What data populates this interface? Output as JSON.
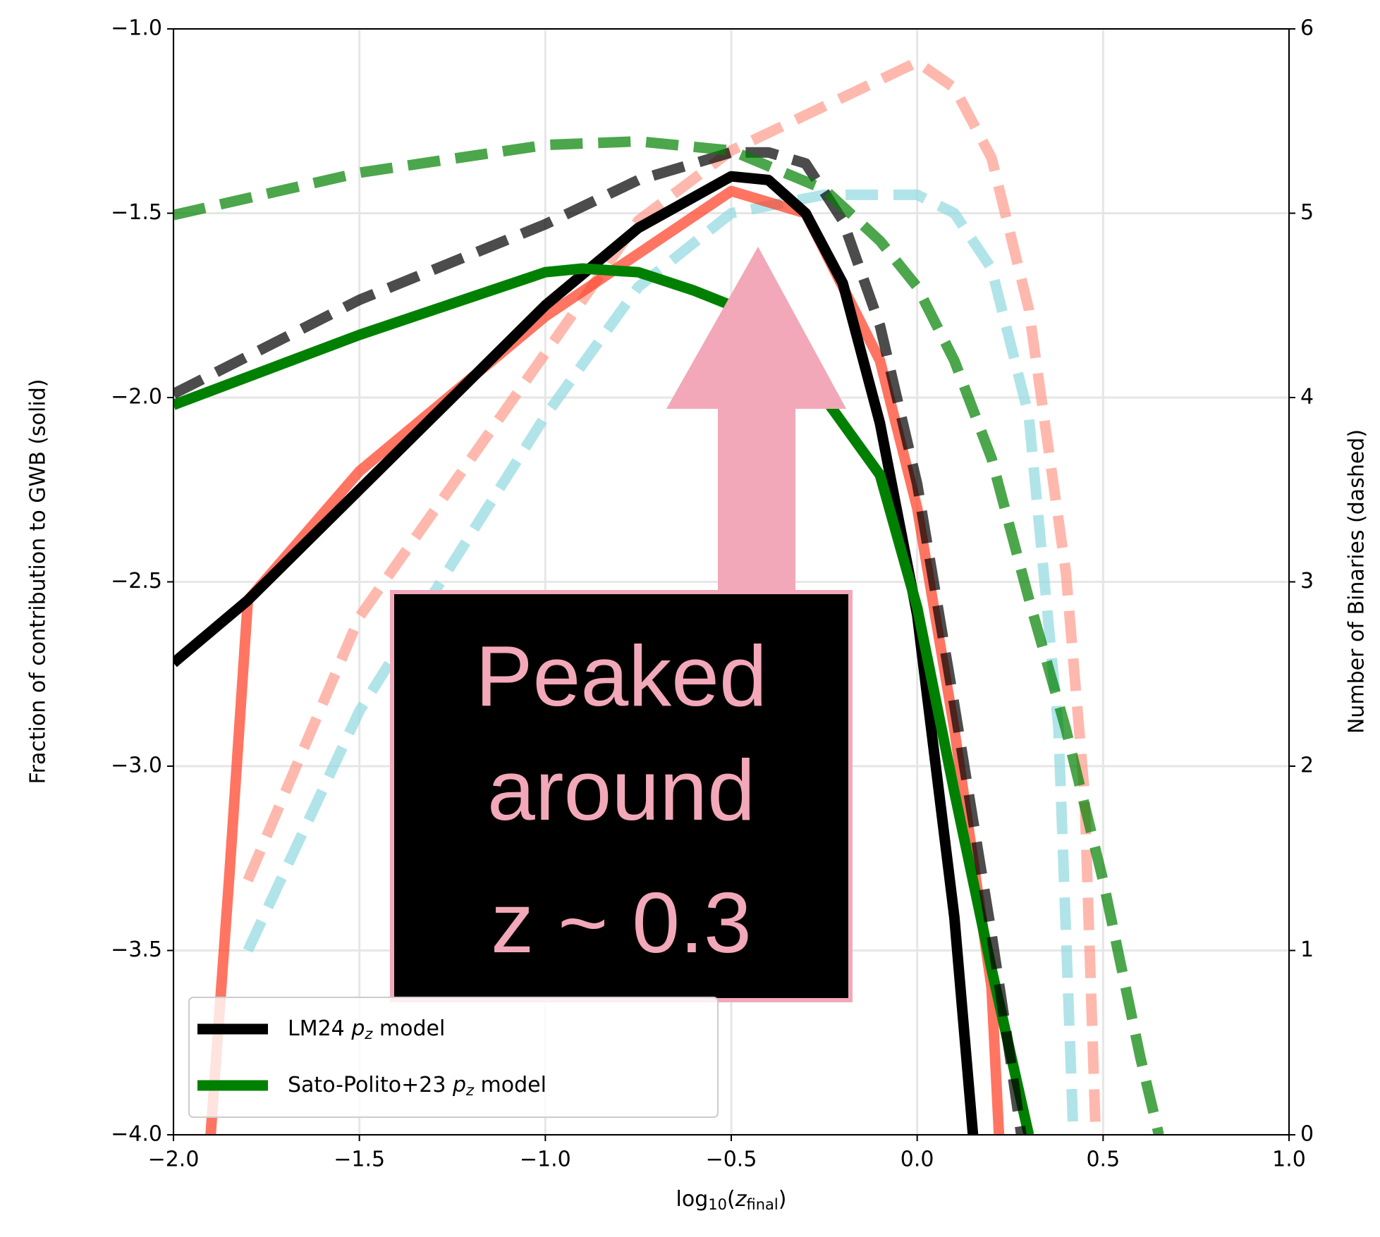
{
  "chart_data": {
    "type": "line",
    "xlabel": [
      "log",
      "10",
      "(",
      "z",
      "final",
      ")"
    ],
    "ylabel": "Fraction of contribution to GWB (solid)",
    "y2label": "Number of Binaries (dashed)",
    "xlim": [
      -2.0,
      1.0
    ],
    "xticks": [
      {
        "value": -2.0,
        "label": "−2.0"
      },
      {
        "value": -1.5,
        "label": "−1.5"
      },
      {
        "value": -1.0,
        "label": "−1.0"
      },
      {
        "value": -0.5,
        "label": "−0.5"
      },
      {
        "value": 0.0,
        "label": "0.0"
      },
      {
        "value": 0.5,
        "label": "0.5"
      },
      {
        "value": 1.0,
        "label": "1.0"
      }
    ],
    "ylim": [
      -4.0,
      -1.0
    ],
    "yticks": [
      {
        "value": -4.0,
        "label": "−4.0"
      },
      {
        "value": -3.5,
        "label": "−3.5"
      },
      {
        "value": -3.0,
        "label": "−3.0"
      },
      {
        "value": -2.5,
        "label": "−2.5"
      },
      {
        "value": -2.0,
        "label": "−2.0"
      },
      {
        "value": -1.5,
        "label": "−1.5"
      },
      {
        "value": -1.0,
        "label": "−1.0"
      }
    ],
    "y2lim": [
      0,
      6
    ],
    "y2ticks": [
      0,
      1,
      2,
      3,
      4,
      5,
      6
    ],
    "grid": true,
    "legend": "lower left",
    "annotation": [
      "Peaked",
      "around",
      "z ~ 0.3"
    ],
    "series": [
      {
        "color": "#ff9a8a",
        "style": "dashed",
        "axis": "y2",
        "x": [
          -1.8,
          -1.5,
          -1.0,
          -0.75,
          -0.5,
          -0.25,
          0.0,
          0.1,
          0.2,
          0.3,
          0.4,
          0.45,
          0.48
        ],
        "values": [
          1.38,
          2.81,
          4.24,
          4.96,
          5.34,
          5.58,
          5.82,
          5.68,
          5.3,
          4.48,
          3.05,
          1.85,
          0
        ]
      },
      {
        "color": "#8fd8e0",
        "style": "dashed",
        "axis": "y2",
        "x": [
          -1.8,
          -1.5,
          -1.0,
          -0.75,
          -0.5,
          -0.25,
          0.0,
          0.1,
          0.2,
          0.3,
          0.38,
          0.42
        ],
        "values": [
          1.0,
          2.3,
          3.9,
          4.6,
          5.0,
          5.1,
          5.1,
          5.0,
          4.7,
          3.9,
          2.2,
          0
        ]
      },
      {
        "color": "#ff3b1f",
        "style": "solid",
        "x": [
          -1.9,
          -1.85,
          -1.8,
          -1.5,
          -1.0,
          -0.5,
          -0.3,
          -0.1,
          0.0,
          0.1,
          0.2,
          0.22
        ],
        "values": [
          -4.0,
          -3.3,
          -2.55,
          -2.2,
          -1.78,
          -1.44,
          -1.5,
          -1.9,
          -2.3,
          -2.9,
          -3.6,
          -4.0
        ]
      },
      {
        "name": [
          "LM24 ",
          "p",
          "z",
          " model"
        ],
        "color": "#000000",
        "style": "solid",
        "x": [
          -2.0,
          -1.8,
          -1.5,
          -1.2,
          -1.0,
          -0.75,
          -0.5,
          -0.4,
          -0.3,
          -0.2,
          -0.1,
          0.0,
          0.1,
          0.15
        ],
        "values": [
          -2.72,
          -2.55,
          -2.25,
          -1.95,
          -1.75,
          -1.54,
          -1.4,
          -1.41,
          -1.5,
          -1.69,
          -2.07,
          -2.59,
          -3.41,
          -4.0
        ]
      },
      {
        "name": [
          "Sato-Polito+23 ",
          "p",
          "z",
          " model"
        ],
        "color": "#008000",
        "style": "solid",
        "x": [
          -2.0,
          -1.5,
          -1.0,
          -0.9,
          -0.75,
          -0.6,
          -0.5,
          -0.4,
          -0.3,
          -0.25,
          -0.1,
          0.0,
          0.1,
          0.2,
          0.3
        ],
        "values": [
          -2.02,
          -1.83,
          -1.66,
          -1.65,
          -1.66,
          -1.71,
          -1.75,
          -1.8,
          -1.92,
          -2.0,
          -2.21,
          -2.57,
          -3.07,
          -3.55,
          -4.0
        ]
      },
      {
        "color": "#000000",
        "style": "dashed",
        "axis": "y2",
        "x": [
          -2.0,
          -1.5,
          -1.0,
          -0.75,
          -0.5,
          -0.4,
          -0.3,
          -0.2,
          -0.1,
          0.0,
          0.1,
          0.2,
          0.25,
          0.28
        ],
        "values": [
          4.02,
          4.53,
          4.94,
          5.18,
          5.33,
          5.33,
          5.27,
          4.96,
          4.39,
          3.53,
          2.33,
          1.09,
          0.42,
          0
        ]
      },
      {
        "color": "#008000",
        "style": "dashed",
        "axis": "y2",
        "x": [
          -2.0,
          -1.5,
          -1.0,
          -0.75,
          -0.5,
          -0.25,
          -0.1,
          0.0,
          0.1,
          0.2,
          0.3,
          0.4,
          0.5,
          0.6,
          0.65
        ],
        "values": [
          4.99,
          5.22,
          5.37,
          5.39,
          5.34,
          5.13,
          4.85,
          4.6,
          4.2,
          3.67,
          2.91,
          2.2,
          1.38,
          0.42,
          0
        ]
      }
    ]
  }
}
